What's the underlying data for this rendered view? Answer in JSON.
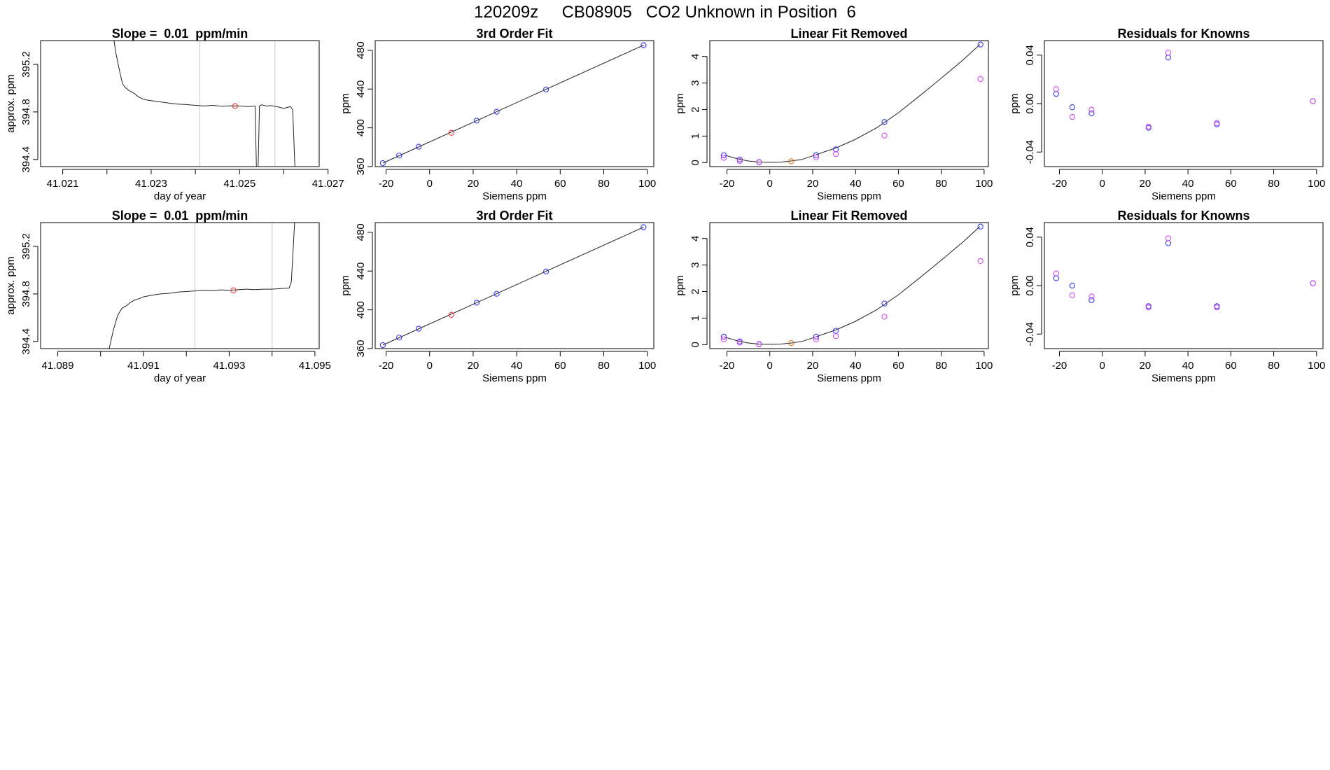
{
  "page_title": "120209z     CB08905   CO2 Unknown in Position  6",
  "colors": {
    "blue": "#3b3bf0",
    "magenta": "#d44cf0",
    "red": "#f03b3b",
    "orange": "#e87a1a",
    "line": "#222222",
    "vline": "#c8c8c8"
  },
  "chart_data": [
    {
      "id": "r1-timeseries",
      "type": "line",
      "title": "Slope =  0.01  ppm/min",
      "xlabel": "day of year",
      "ylabel": "approx. ppm",
      "xlim": [
        41.0205,
        41.0268
      ],
      "ylim": [
        394.34,
        395.4
      ],
      "xticks": [
        41.021,
        41.022,
        41.023,
        41.024,
        41.025,
        41.026,
        41.027
      ],
      "xtick_labels": [
        "41.021",
        "",
        "41.023",
        "",
        "41.025",
        "",
        "41.027"
      ],
      "yticks": [
        394.4,
        394.8,
        395.2
      ],
      "ytick_labels": [
        "394.4",
        "394.8",
        "395.2"
      ],
      "vlines": [
        41.0241,
        41.0258
      ],
      "highlight": {
        "x": 41.0249,
        "y": 394.85
      },
      "series": [
        {
          "name": "trace",
          "points": [
            [
              41.0221,
              395.55
            ],
            [
              41.0222,
              395.3
            ],
            [
              41.0223,
              395.12
            ],
            [
              41.02235,
              395.04
            ],
            [
              41.0224,
              395.01
            ],
            [
              41.0225,
              394.98
            ],
            [
              41.0226,
              394.96
            ],
            [
              41.0227,
              394.93
            ],
            [
              41.0228,
              394.91
            ],
            [
              41.0229,
              394.9
            ],
            [
              41.023,
              394.895
            ],
            [
              41.0232,
              394.885
            ],
            [
              41.0234,
              394.875
            ],
            [
              41.0236,
              394.865
            ],
            [
              41.0238,
              394.862
            ],
            [
              41.024,
              394.855
            ],
            [
              41.0242,
              394.85
            ],
            [
              41.0244,
              394.855
            ],
            [
              41.0246,
              394.848
            ],
            [
              41.0248,
              394.852
            ],
            [
              41.025,
              394.85
            ],
            [
              41.0252,
              394.845
            ],
            [
              41.02535,
              394.85
            ],
            [
              41.02538,
              394.34
            ],
            [
              41.02542,
              394.34
            ],
            [
              41.02545,
              394.85
            ],
            [
              41.0255,
              394.86
            ],
            [
              41.0256,
              394.85
            ],
            [
              41.0257,
              394.853
            ],
            [
              41.0258,
              394.848
            ],
            [
              41.0259,
              394.84
            ],
            [
              41.026,
              394.83
            ],
            [
              41.0261,
              394.84
            ],
            [
              41.02615,
              394.845
            ],
            [
              41.0262,
              394.82
            ],
            [
              41.02625,
              394.34
            ]
          ]
        }
      ]
    },
    {
      "id": "r1-fit",
      "type": "scatter",
      "title": "3rd Order Fit",
      "xlabel": "Siemens ppm",
      "ylabel": "ppm",
      "xlim": [
        -25,
        103
      ],
      "ylim": [
        360,
        490
      ],
      "xticks": [
        -20,
        0,
        20,
        40,
        60,
        80,
        100
      ],
      "xtick_labels": [
        "-20",
        "0",
        "20",
        "40",
        "60",
        "80",
        "100"
      ],
      "yticks": [
        360,
        400,
        440,
        480
      ],
      "ytick_labels": [
        "360",
        "400",
        "440",
        "480"
      ],
      "curve": [
        [
          -21.5,
          363.6
        ],
        [
          98.3,
          485.3
        ]
      ],
      "series": [
        {
          "name": "knowns",
          "color": "blue",
          "x": [
            -21.5,
            -14,
            -5,
            21.6,
            30.8,
            53.5,
            98.3
          ],
          "y": [
            363.6,
            371.4,
            380.5,
            407.4,
            416.6,
            439.6,
            485.3
          ]
        },
        {
          "name": "unknown",
          "color": "red",
          "x": [
            10
          ],
          "y": [
            394.8
          ]
        }
      ]
    },
    {
      "id": "r1-linear-removed",
      "type": "scatter",
      "title": "Linear Fit Removed",
      "xlabel": "Siemens ppm",
      "ylabel": "ppm",
      "xlim": [
        -28,
        102
      ],
      "ylim": [
        -0.15,
        4.6
      ],
      "xticks": [
        -20,
        0,
        20,
        40,
        60,
        80,
        100
      ],
      "xtick_labels": [
        "-20",
        "0",
        "20",
        "40",
        "60",
        "80",
        "100"
      ],
      "yticks": [
        0,
        1,
        2,
        3,
        4
      ],
      "ytick_labels": [
        "0",
        "1",
        "2",
        "3",
        "4"
      ],
      "curve": [
        [
          -21,
          0.28
        ],
        [
          -15,
          0.14
        ],
        [
          -10,
          0.06
        ],
        [
          -5,
          0.02
        ],
        [
          0,
          0.01
        ],
        [
          5,
          0.02
        ],
        [
          10,
          0.06
        ],
        [
          15,
          0.12
        ],
        [
          21,
          0.28
        ],
        [
          26,
          0.42
        ],
        [
          31,
          0.56
        ],
        [
          40,
          0.88
        ],
        [
          50,
          1.32
        ],
        [
          60,
          1.88
        ],
        [
          70,
          2.52
        ],
        [
          80,
          3.18
        ],
        [
          90,
          3.86
        ],
        [
          98,
          4.45
        ]
      ],
      "series": [
        {
          "name": "knowns-fit",
          "color": "blue",
          "x": [
            -21.5,
            -14,
            -5,
            21.6,
            30.8,
            53.5,
            98.3
          ],
          "y": [
            0.28,
            0.12,
            0.02,
            0.28,
            0.5,
            1.53,
            4.45
          ]
        },
        {
          "name": "knowns-linear",
          "color": "magenta",
          "x": [
            -21.5,
            -14,
            -5,
            21.6,
            30.8,
            53.5,
            98.3
          ],
          "y": [
            0.18,
            0.06,
            0.01,
            0.2,
            0.32,
            1.02,
            3.15
          ]
        },
        {
          "name": "unknown",
          "color": "orange",
          "x": [
            10
          ],
          "y": [
            0.05
          ]
        }
      ]
    },
    {
      "id": "r1-residuals",
      "type": "scatter",
      "title": "Residuals for Knowns",
      "xlabel": "Siemens ppm",
      "ylabel": "ppm",
      "xlim": [
        -27,
        103
      ],
      "ylim": [
        -0.052,
        0.052
      ],
      "xticks": [
        -20,
        0,
        20,
        40,
        60,
        80,
        100
      ],
      "xtick_labels": [
        "-20",
        "0",
        "20",
        "40",
        "60",
        "80",
        "100"
      ],
      "yticks": [
        -0.04,
        0.0,
        0.04
      ],
      "ytick_labels": [
        "-0.04",
        "0.00",
        "0.04"
      ],
      "series": [
        {
          "name": "residual-fit",
          "color": "blue",
          "x": [
            -21.5,
            -14,
            -5,
            21.6,
            30.8,
            53.5,
            98.3
          ],
          "y": [
            0.008,
            -0.003,
            -0.008,
            -0.02,
            0.038,
            -0.017,
            0.002
          ]
        },
        {
          "name": "residual-alt",
          "color": "magenta",
          "x": [
            -21.5,
            -14,
            -5,
            21.6,
            30.8,
            53.5,
            98.3
          ],
          "y": [
            0.012,
            -0.011,
            -0.005,
            -0.019,
            0.042,
            -0.016,
            0.002
          ]
        }
      ]
    },
    {
      "id": "r2-timeseries",
      "type": "line",
      "title": "Slope =  0.01  ppm/min",
      "xlabel": "day of year",
      "ylabel": "approx. ppm",
      "xlim": [
        41.0886,
        41.0951
      ],
      "ylim": [
        394.34,
        395.4
      ],
      "xticks": [
        41.089,
        41.09,
        41.091,
        41.092,
        41.093,
        41.094,
        41.095
      ],
      "xtick_labels": [
        "41.089",
        "",
        "41.091",
        "",
        "41.093",
        "",
        "41.095"
      ],
      "vlines": [
        41.0922,
        41.094
      ],
      "yticks": [
        394.4,
        394.8,
        395.2
      ],
      "ytick_labels": [
        "394.4",
        "394.8",
        "395.2"
      ],
      "highlight": {
        "x": 41.0931,
        "y": 394.83
      },
      "series": [
        {
          "name": "trace",
          "points": [
            [
              41.0902,
              394.34
            ],
            [
              41.0903,
              394.5
            ],
            [
              41.0904,
              394.62
            ],
            [
              41.0905,
              394.68
            ],
            [
              41.0906,
              394.7
            ],
            [
              41.0907,
              394.73
            ],
            [
              41.0908,
              394.75
            ],
            [
              41.0909,
              394.76
            ],
            [
              41.091,
              394.775
            ],
            [
              41.0912,
              394.79
            ],
            [
              41.0914,
              394.8
            ],
            [
              41.0916,
              394.805
            ],
            [
              41.0918,
              394.815
            ],
            [
              41.092,
              394.82
            ],
            [
              41.0922,
              394.825
            ],
            [
              41.0924,
              394.83
            ],
            [
              41.0926,
              394.828
            ],
            [
              41.0928,
              394.834
            ],
            [
              41.093,
              394.83
            ],
            [
              41.0932,
              394.835
            ],
            [
              41.0934,
              394.84
            ],
            [
              41.0936,
              394.836
            ],
            [
              41.0938,
              394.84
            ],
            [
              41.094,
              394.84
            ],
            [
              41.0942,
              394.845
            ],
            [
              41.0944,
              394.85
            ],
            [
              41.09445,
              394.9
            ],
            [
              41.09455,
              395.55
            ]
          ]
        }
      ]
    },
    {
      "id": "r2-fit",
      "type": "scatter",
      "title": "3rd Order Fit",
      "xlabel": "Siemens ppm",
      "ylabel": "ppm",
      "xlim": [
        -25,
        103
      ],
      "ylim": [
        360,
        490
      ],
      "xticks": [
        -20,
        0,
        20,
        40,
        60,
        80,
        100
      ],
      "xtick_labels": [
        "-20",
        "0",
        "20",
        "40",
        "60",
        "80",
        "100"
      ],
      "yticks": [
        360,
        400,
        440,
        480
      ],
      "ytick_labels": [
        "360",
        "400",
        "440",
        "480"
      ],
      "curve": [
        [
          -21.5,
          363.6
        ],
        [
          98.3,
          485.3
        ]
      ],
      "series": [
        {
          "name": "knowns",
          "color": "blue",
          "x": [
            -21.5,
            -14,
            -5,
            21.6,
            30.8,
            53.5,
            98.3
          ],
          "y": [
            363.6,
            371.4,
            380.5,
            407.4,
            416.6,
            439.6,
            485.3
          ]
        },
        {
          "name": "unknown",
          "color": "red",
          "x": [
            10
          ],
          "y": [
            394.8
          ]
        }
      ]
    },
    {
      "id": "r2-linear-removed",
      "type": "scatter",
      "title": "Linear Fit Removed",
      "xlabel": "Siemens ppm",
      "ylabel": "ppm",
      "xlim": [
        -28,
        102
      ],
      "ylim": [
        -0.15,
        4.6
      ],
      "xticks": [
        -20,
        0,
        20,
        40,
        60,
        80,
        100
      ],
      "xtick_labels": [
        "-20",
        "0",
        "20",
        "40",
        "60",
        "80",
        "100"
      ],
      "yticks": [
        0,
        1,
        2,
        3,
        4
      ],
      "ytick_labels": [
        "0",
        "1",
        "2",
        "3",
        "4"
      ],
      "curve": [
        [
          -21,
          0.28
        ],
        [
          -15,
          0.14
        ],
        [
          -10,
          0.06
        ],
        [
          -5,
          0.02
        ],
        [
          0,
          0.01
        ],
        [
          5,
          0.02
        ],
        [
          10,
          0.06
        ],
        [
          15,
          0.12
        ],
        [
          21,
          0.28
        ],
        [
          26,
          0.42
        ],
        [
          31,
          0.56
        ],
        [
          40,
          0.88
        ],
        [
          50,
          1.32
        ],
        [
          60,
          1.88
        ],
        [
          70,
          2.52
        ],
        [
          80,
          3.18
        ],
        [
          90,
          3.86
        ],
        [
          98,
          4.45
        ]
      ],
      "series": [
        {
          "name": "knowns-fit",
          "color": "blue",
          "x": [
            -21.5,
            -14,
            -5,
            21.6,
            30.8,
            53.5,
            98.3
          ],
          "y": [
            0.3,
            0.12,
            0.02,
            0.3,
            0.52,
            1.55,
            4.45
          ]
        },
        {
          "name": "knowns-linear",
          "color": "magenta",
          "x": [
            -21.5,
            -14,
            -5,
            21.6,
            30.8,
            53.5,
            98.3
          ],
          "y": [
            0.2,
            0.08,
            0.01,
            0.2,
            0.32,
            1.05,
            3.15
          ]
        },
        {
          "name": "unknown",
          "color": "orange",
          "x": [
            10
          ],
          "y": [
            0.06
          ]
        }
      ]
    },
    {
      "id": "r2-residuals",
      "type": "scatter",
      "title": "Residuals for Knowns",
      "xlabel": "Siemens ppm",
      "ylabel": "ppm",
      "xlim": [
        -27,
        103
      ],
      "ylim": [
        -0.052,
        0.052
      ],
      "xticks": [
        -20,
        0,
        20,
        40,
        60,
        80,
        100
      ],
      "xtick_labels": [
        "-20",
        "0",
        "20",
        "40",
        "60",
        "80",
        "100"
      ],
      "yticks": [
        -0.04,
        0.0,
        0.04
      ],
      "ytick_labels": [
        "-0.04",
        "0.00",
        "0.04"
      ],
      "series": [
        {
          "name": "residual-fit",
          "color": "blue",
          "x": [
            -21.5,
            -14,
            -5,
            21.6,
            30.8,
            53.5,
            98.3
          ],
          "y": [
            0.006,
            0.0,
            -0.012,
            -0.017,
            0.035,
            -0.017,
            0.002
          ]
        },
        {
          "name": "residual-alt",
          "color": "magenta",
          "x": [
            -21.5,
            -14,
            -5,
            21.6,
            30.8,
            53.5,
            98.3
          ],
          "y": [
            0.01,
            -0.008,
            -0.009,
            -0.018,
            0.039,
            -0.018,
            0.002
          ]
        }
      ]
    }
  ]
}
